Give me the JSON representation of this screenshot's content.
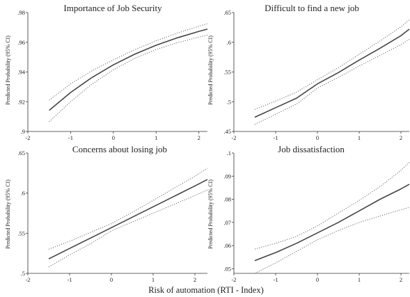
{
  "figure": {
    "xlabel": "Risk of automation (RTI - Index)",
    "ylabel": "Predicted Probability (95% CI)"
  },
  "chart_data": [
    {
      "type": "line",
      "title": "Importance of Job Security",
      "ylabel": "Predicted Probability (95% CI)",
      "xlim": [
        -2,
        2.2
      ],
      "ylim": [
        0.9,
        0.98
      ],
      "xticks": [
        -2,
        -1,
        0,
        1,
        2
      ],
      "xtick_labels": [
        "-2",
        "-1",
        "0",
        "1",
        "2"
      ],
      "yticks": [
        0.9,
        0.92,
        0.94,
        0.96,
        0.98
      ],
      "ytick_labels": [
        ".9",
        ".92",
        ".94",
        ".96",
        ".98"
      ],
      "grid": false,
      "x": [
        -1.5,
        -1.0,
        -0.5,
        0.0,
        0.5,
        1.0,
        1.5,
        2.0,
        2.2
      ],
      "series": [
        {
          "values": [
            0.9142,
            0.9262,
            0.9363,
            0.9448,
            0.952,
            0.958,
            0.963,
            0.9673,
            0.9688
          ],
          "style": "solid"
        },
        {
          "values": [
            0.9065,
            0.92,
            0.9318,
            0.9415,
            0.9492,
            0.9551,
            0.9597,
            0.9635,
            0.9649
          ],
          "style": "dotted"
        },
        {
          "values": [
            0.921,
            0.932,
            0.9408,
            0.9482,
            0.955,
            0.961,
            0.9662,
            0.9708,
            0.9725
          ],
          "style": "dotted"
        }
      ]
    },
    {
      "type": "line",
      "title": "Difficult to find a new job",
      "ylabel": "Predicted Probability (95% CI)",
      "xlim": [
        -2,
        2.2
      ],
      "ylim": [
        0.45,
        0.65
      ],
      "xticks": [
        -2,
        -1,
        0,
        1,
        2
      ],
      "xtick_labels": [
        "-2",
        "-1",
        "0",
        "1",
        "2"
      ],
      "yticks": [
        0.45,
        0.5,
        0.55,
        0.6,
        0.65
      ],
      "ytick_labels": [
        ".45",
        ".5",
        ".55",
        ".6",
        ".65"
      ],
      "grid": false,
      "x": [
        -1.5,
        -1.0,
        -0.5,
        0.0,
        0.5,
        1.0,
        1.5,
        2.0,
        2.2
      ],
      "series": [
        {
          "values": [
            0.474,
            0.49,
            0.506,
            0.53,
            0.549,
            0.57,
            0.59,
            0.611,
            0.622
          ],
          "style": "solid"
        },
        {
          "values": [
            0.462,
            0.479,
            0.496,
            0.523,
            0.541,
            0.56,
            0.578,
            0.596,
            0.605
          ],
          "style": "dotted"
        },
        {
          "values": [
            0.487,
            0.501,
            0.516,
            0.537,
            0.557,
            0.58,
            0.602,
            0.626,
            0.638
          ],
          "style": "dotted"
        }
      ]
    },
    {
      "type": "line",
      "title": "Concerns about losing job",
      "ylabel": "Predicted Probability (95% CI)",
      "xlim": [
        -2,
        2.3
      ],
      "ylim": [
        0.5,
        0.65
      ],
      "xticks": [
        -2,
        -1,
        0,
        1,
        2
      ],
      "xtick_labels": [
        "-2",
        "-1",
        "0",
        "1",
        "2"
      ],
      "yticks": [
        0.5,
        0.55,
        0.6,
        0.65
      ],
      "ytick_labels": [
        ".5",
        ".55",
        ".6",
        ".65"
      ],
      "grid": false,
      "x": [
        -1.5,
        -1.0,
        -0.5,
        0.0,
        0.5,
        1.0,
        1.5,
        2.0,
        2.3
      ],
      "series": [
        {
          "values": [
            0.518,
            0.531,
            0.544,
            0.557,
            0.57,
            0.583,
            0.596,
            0.609,
            0.617
          ],
          "style": "solid"
        },
        {
          "values": [
            0.508,
            0.523,
            0.537,
            0.553,
            0.564,
            0.575,
            0.586,
            0.597,
            0.604
          ],
          "style": "dotted"
        },
        {
          "values": [
            0.53,
            0.54,
            0.551,
            0.562,
            0.576,
            0.591,
            0.606,
            0.621,
            0.631
          ],
          "style": "dotted"
        }
      ]
    },
    {
      "type": "line",
      "title": "Job dissatisfaction",
      "ylabel": "Predicted Probability (95% CI)",
      "xlim": [
        -2,
        2.2
      ],
      "ylim": [
        0.048,
        0.1
      ],
      "xticks": [
        -2,
        -1,
        0,
        1,
        2
      ],
      "xtick_labels": [
        "-2",
        "-1",
        "0",
        "1",
        "2"
      ],
      "yticks": [
        0.05,
        0.06,
        0.07,
        0.08,
        0.09,
        0.1
      ],
      "ytick_labels": [
        ".05",
        ".06",
        ".07",
        ".08",
        ".09",
        ".1"
      ],
      "grid": false,
      "x": [
        -1.5,
        -1.0,
        -0.5,
        0.0,
        0.5,
        1.0,
        1.5,
        2.0,
        2.2
      ],
      "series": [
        {
          "values": [
            0.0535,
            0.057,
            0.061,
            0.0655,
            0.07,
            0.075,
            0.08,
            0.0845,
            0.0865
          ],
          "style": "solid"
        },
        {
          "values": [
            0.048,
            0.0525,
            0.0575,
            0.0625,
            0.0665,
            0.07,
            0.0728,
            0.0755,
            0.0765
          ],
          "style": "dotted"
        },
        {
          "values": [
            0.0585,
            0.061,
            0.064,
            0.0685,
            0.074,
            0.0795,
            0.0855,
            0.0925,
            0.096
          ],
          "style": "dotted"
        }
      ]
    }
  ]
}
